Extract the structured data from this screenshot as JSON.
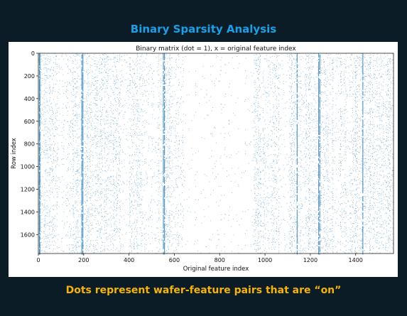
{
  "slide": {
    "title": "Binary Sparsity Analysis",
    "caption": "Dots represent wafer-feature pairs that are “on”"
  },
  "chart_data": {
    "type": "scatter",
    "title": "Binary matrix (dot = 1), x = original feature index",
    "xlabel": "Original feature index",
    "ylabel": "Row index",
    "xlim": [
      0,
      1567
    ],
    "ylim": [
      1767,
      0
    ],
    "y_inverted": true,
    "xticks": [
      "0",
      "200",
      "400",
      "600",
      "800",
      "1000",
      "1200",
      "1400"
    ],
    "yticks": [
      "0",
      "200",
      "400",
      "600",
      "800",
      "1000",
      "1200",
      "1400",
      "1600"
    ],
    "n_rows": 1767,
    "n_features": 1567,
    "dot_color": "#1f77b4",
    "grid": false,
    "dense_columns": [
      3,
      5,
      190,
      195,
      550,
      555,
      1140,
      1235,
      1240,
      1430
    ],
    "dense_bands": [
      [
        0,
        90
      ],
      [
        150,
        360
      ],
      [
        400,
        470
      ],
      [
        520,
        620
      ],
      [
        950,
        1060
      ],
      [
        1110,
        1300
      ],
      [
        1330,
        1567
      ]
    ],
    "sparse_bands": [
      [
        640,
        940
      ]
    ]
  }
}
